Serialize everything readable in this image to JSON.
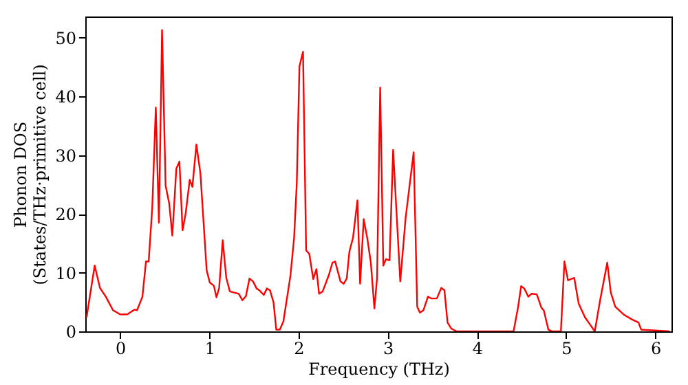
{
  "chart_data": {
    "type": "line",
    "xlabel": "Frequency (THz)",
    "ylabel": "Phonon DOS\n(States/THz·primitive cell)",
    "x": [
      -0.376,
      -0.285,
      -0.226,
      -0.16,
      -0.08,
      0,
      0.08,
      0.16,
      0.19,
      0.25,
      0.29,
      0.32,
      0.36,
      0.4,
      0.435,
      0.47,
      0.51,
      0.55,
      0.585,
      0.63,
      0.665,
      0.7,
      0.735,
      0.78,
      0.81,
      0.855,
      0.9,
      0.97,
      1.005,
      1.05,
      1.08,
      1.11,
      1.15,
      1.19,
      1.23,
      1.33,
      1.37,
      1.41,
      1.45,
      1.49,
      1.53,
      1.56,
      1.61,
      1.645,
      1.68,
      1.72,
      1.75,
      1.79,
      1.83,
      1.88,
      1.91,
      1.95,
      1.98,
      2.01,
      2.05,
      2.085,
      2.12,
      2.165,
      2.2,
      2.23,
      2.27,
      2.34,
      2.38,
      2.41,
      2.47,
      2.505,
      2.54,
      2.57,
      2.61,
      2.66,
      2.69,
      2.73,
      2.77,
      2.81,
      2.85,
      2.88,
      2.915,
      2.95,
      2.98,
      3.02,
      3.06,
      3.14,
      3.2,
      3.29,
      3.33,
      3.36,
      3.4,
      3.45,
      3.49,
      3.55,
      3.6,
      3.635,
      3.67,
      3.71,
      3.77,
      4.41,
      4.46,
      4.495,
      4.53,
      4.575,
      4.61,
      4.67,
      4.72,
      4.75,
      4.8,
      4.84,
      4.94,
      4.98,
      5.02,
      5.09,
      5.14,
      5.21,
      5.27,
      5.32,
      5.38,
      5.46,
      5.5,
      5.55,
      5.65,
      5.74,
      5.81,
      5.84,
      6.16
    ],
    "series": [
      {
        "color": "#ff0000",
        "values": [
          2.4,
          11.2,
          7.4,
          5.9,
          3.6,
          2.9,
          2.9,
          3.7,
          3.6,
          5.9,
          11.9,
          11.9,
          21,
          38.1,
          18.5,
          51.3,
          24.8,
          21.8,
          16.3,
          27.7,
          28.9,
          17.2,
          20.1,
          25.8,
          24.6,
          31.8,
          26.9,
          10.4,
          8.3,
          7.8,
          5.8,
          7.4,
          15.5,
          9.1,
          6.8,
          6.4,
          5.3,
          6.0,
          9.0,
          8.5,
          7.3,
          7.0,
          6.2,
          7.3,
          7.0,
          4.9,
          0.3,
          0.3,
          1.7,
          6.6,
          9.6,
          15.9,
          25.2,
          45.1,
          47.6,
          13.8,
          13.2,
          8.9,
          10.6,
          6.4,
          6.8,
          9.6,
          11.7,
          11.9,
          8.5,
          8.1,
          9.0,
          13.6,
          15.9,
          22.3,
          8.1,
          19.1,
          15.9,
          11.7,
          3.9,
          9.1,
          41.5,
          11.2,
          12.3,
          12.1,
          30.9,
          8.5,
          19.3,
          30.5,
          4.2,
          3.2,
          3.6,
          5.9,
          5.6,
          5.6,
          7.4,
          7.0,
          1.5,
          0.5,
          0,
          0,
          4.1,
          7.7,
          7.3,
          5.9,
          6.4,
          6.3,
          4.1,
          3.5,
          0.3,
          0,
          0,
          11.9,
          8.7,
          9.1,
          4.7,
          2.4,
          1.1,
          0,
          5.3,
          11.7,
          6.6,
          4.2,
          2.8,
          2.0,
          1.5,
          0.3,
          0
        ]
      }
    ],
    "xlim": [
      -0.39,
      6.18
    ],
    "ylim": [
      0,
      53.6
    ],
    "xticks": [
      0,
      1,
      2,
      3,
      4,
      5,
      6
    ],
    "yticks": [
      0,
      10,
      20,
      30,
      40,
      50
    ],
    "grid": false,
    "legend": false,
    "marker": "none",
    "line_style": "solid"
  }
}
